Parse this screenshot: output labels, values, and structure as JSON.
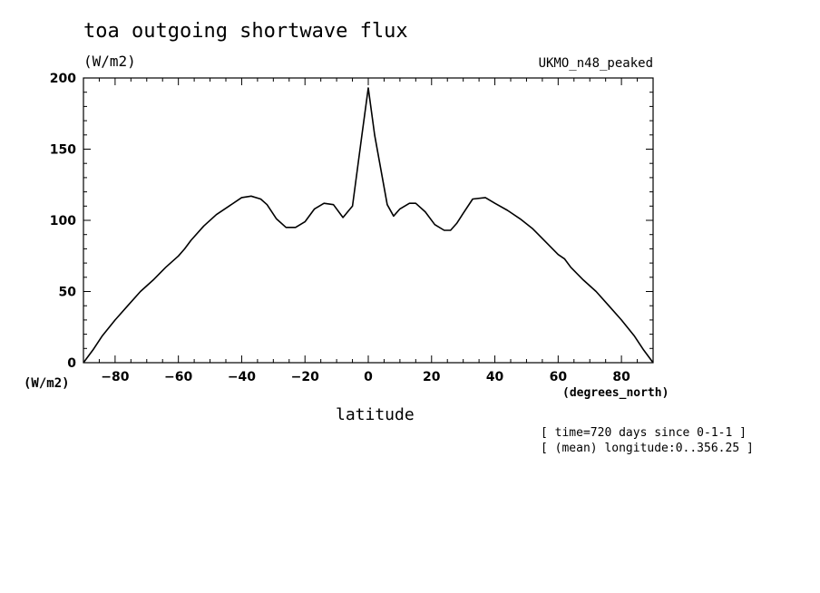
{
  "chart_data": {
    "type": "line",
    "title": "toa outgoing shortwave flux",
    "unit_label": "(W/m2)",
    "dataset_label": "UKMO_n48_peaked",
    "ylabel": "(W/m2)",
    "xlabel": "latitude",
    "x_unit": "(degrees_north)",
    "notes": [
      "[ time=720 days since 0-1-1 ]",
      "[ (mean) longitude:0..356.25 ]"
    ],
    "xlim": [
      -90,
      90
    ],
    "ylim": [
      0,
      200
    ],
    "x_ticks": [
      -80,
      -60,
      -40,
      -20,
      0,
      20,
      40,
      60,
      80
    ],
    "y_ticks": [
      0,
      50,
      100,
      150,
      200
    ],
    "grid": false,
    "series": [
      {
        "x": [
          -90,
          -87,
          -84,
          -80,
          -76,
          -72,
          -68,
          -64,
          -60,
          -58,
          -56,
          -52,
          -48,
          -44,
          -40,
          -37,
          -34,
          -32,
          -29,
          -26,
          -23,
          -20,
          -17,
          -14,
          -11,
          -8,
          -5,
          -2,
          0,
          2,
          6,
          8,
          10,
          13,
          15,
          18,
          21,
          24,
          26,
          28,
          30,
          33,
          37,
          40,
          44,
          48,
          52,
          56,
          60,
          62,
          64,
          68,
          72,
          76,
          80,
          84,
          87,
          90
        ],
        "y": [
          0,
          9,
          19,
          30,
          40,
          50,
          58,
          67,
          75,
          80,
          86,
          96,
          104,
          110,
          116,
          117,
          115,
          111,
          101,
          95,
          95,
          99,
          108,
          112,
          111,
          102,
          110,
          160,
          193,
          160,
          111,
          103,
          108,
          112,
          112,
          106,
          97,
          93,
          93,
          98,
          105,
          115,
          116,
          112,
          107,
          101,
          94,
          85,
          76,
          73,
          67,
          58,
          50,
          40,
          30,
          19,
          9,
          0
        ]
      }
    ]
  }
}
